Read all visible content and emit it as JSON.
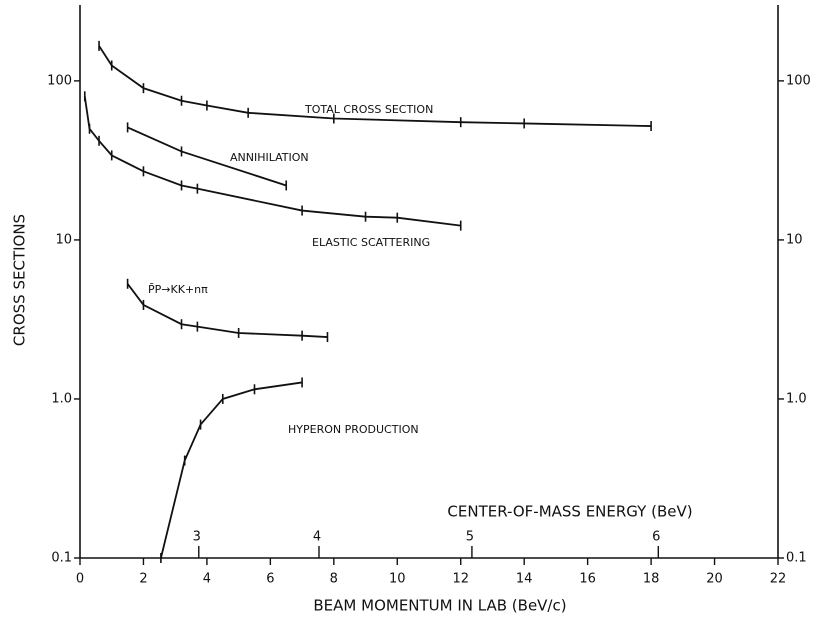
{
  "chart_data": {
    "type": "line",
    "log_y": true,
    "xlabel": "BEAM MOMENTUM IN LAB (BeV/c)",
    "ylabel": "CROSS SECTIONS",
    "x2label": "CENTER-OF-MASS ENERGY (BeV)",
    "xlim": [
      0,
      22
    ],
    "xticks": [
      0,
      2,
      4,
      6,
      8,
      10,
      12,
      14,
      16,
      18,
      20,
      22
    ],
    "ylim": [
      0.1,
      300
    ],
    "yticks": [
      0.1,
      {
        "value": 1,
        "label": "1.0"
      },
      10,
      100
    ],
    "x2ticks": [
      3,
      4,
      5,
      6
    ],
    "series": [
      {
        "name": "TOTAL CROSS SECTION",
        "color": "#111111",
        "x": [
          0.6,
          1,
          2,
          3.2,
          4,
          5.3,
          8,
          12,
          14,
          18
        ],
        "values": [
          166,
          125,
          90,
          75,
          70,
          63,
          58,
          55,
          54,
          52
        ]
      },
      {
        "name": "ANNIHILATION",
        "color": "#111111",
        "x": [
          1.5,
          3.2,
          6.5
        ],
        "values": [
          51,
          36,
          22
        ]
      },
      {
        "name": "ELASTIC SCATTERING",
        "color": "#111111",
        "x": [
          0.15,
          0.3,
          0.6,
          1,
          2,
          3.2,
          3.7,
          7,
          9,
          10,
          12
        ],
        "values": [
          80,
          50,
          42,
          34,
          27,
          22,
          21,
          15.3,
          14,
          13.8,
          12.3
        ]
      },
      {
        "name": "P̄P→KK+nπ",
        "color": "#111111",
        "x": [
          1.5,
          2,
          3.2,
          3.7,
          5,
          7,
          7.8
        ],
        "values": [
          5.3,
          3.9,
          2.95,
          2.85,
          2.6,
          2.5,
          2.45
        ]
      },
      {
        "name": "HYPERON PRODUCTION",
        "color": "#111111",
        "x": [
          2.55,
          3.3,
          3.8,
          4.5,
          5.5,
          7
        ],
        "values": [
          0.1,
          0.41,
          0.69,
          1,
          1.15,
          1.27
        ]
      }
    ]
  }
}
